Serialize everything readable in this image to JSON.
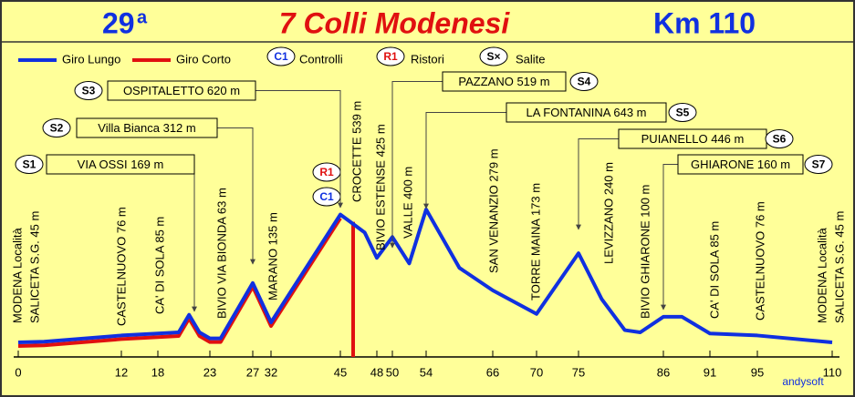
{
  "chart_data": {
    "type": "line",
    "edition": "29",
    "edition_suffix": "a",
    "title": "7 Colli Modenesi",
    "distance": "Km 110",
    "legend": {
      "controls_badge": "C1",
      "controls": "Controlli",
      "refresh_badge": "R1",
      "refresh": "Ristori",
      "climbs_badge": "S×",
      "climbs": "Salite"
    },
    "series": [
      {
        "name": "Giro Lungo",
        "color": "#1030e0",
        "x": [
          0,
          3,
          12,
          18,
          20,
          21,
          22,
          23,
          24,
          27,
          32,
          45,
          47,
          48,
          50,
          52,
          54,
          60,
          66,
          70,
          75,
          78,
          81,
          83,
          86,
          88,
          91,
          95,
          110
        ],
        "values": [
          45,
          48,
          76,
          85,
          90,
          169,
          90,
          63,
          63,
          312,
          135,
          620,
          539,
          425,
          519,
          400,
          643,
          380,
          279,
          173,
          446,
          240,
          100,
          90,
          160,
          160,
          85,
          76,
          45
        ]
      },
      {
        "name": "Giro Corto",
        "color": "#e01010",
        "x": [
          0,
          3,
          12,
          18,
          20,
          21,
          22,
          23,
          24,
          27,
          32,
          45
        ],
        "values": [
          45,
          48,
          76,
          85,
          90,
          169,
          90,
          63,
          63,
          312,
          135,
          620
        ]
      }
    ],
    "xticks": [
      0,
      12,
      18,
      23,
      27,
      32,
      45,
      48,
      50,
      54,
      66,
      70,
      75,
      86,
      91,
      95,
      110
    ],
    "checkpoints": [
      "R1",
      "C1"
    ],
    "climbs": [
      {
        "badge": "S1",
        "label": "VIA OSSI 169 m"
      },
      {
        "badge": "S2",
        "label": "Villa Bianca 312 m"
      },
      {
        "badge": "S3",
        "label": "OSPITALETTO 620 m"
      },
      {
        "badge": "S4",
        "label": "PAZZANO 519 m"
      },
      {
        "badge": "S5",
        "label": "LA FONTANINA 643 m"
      },
      {
        "badge": "S6",
        "label": "PUIANELLO 446 m"
      },
      {
        "badge": "S7",
        "label": "GHIARONE 160 m"
      }
    ],
    "places": [
      [
        "MODENA Località",
        "SALICETA S.G. 45 m"
      ],
      [
        "CASTELNUOVO 76 m"
      ],
      [
        "CA' DI SOLA 85 m"
      ],
      [
        "BIVIO VIA BIONDA 63 m"
      ],
      [
        "MARANO 135 m"
      ],
      [
        "CROCETTE 539 m"
      ],
      [
        "BIVIO ESTENSE 425 m"
      ],
      [
        "VALLE 400 m"
      ],
      [
        "SAN VENANZIO 279 m"
      ],
      [
        "TORRE MAINA 173 m"
      ],
      [
        "LEVIZZANO 240 m"
      ],
      [
        "BIVIO GHIARONE 100 m"
      ],
      [
        "CA' DI SOLA 85 m"
      ],
      [
        "CASTELNUOVO 76 m"
      ],
      [
        "MODENA Località",
        "SALICETA S.G. 45 m"
      ]
    ],
    "credit": "andysoft"
  }
}
